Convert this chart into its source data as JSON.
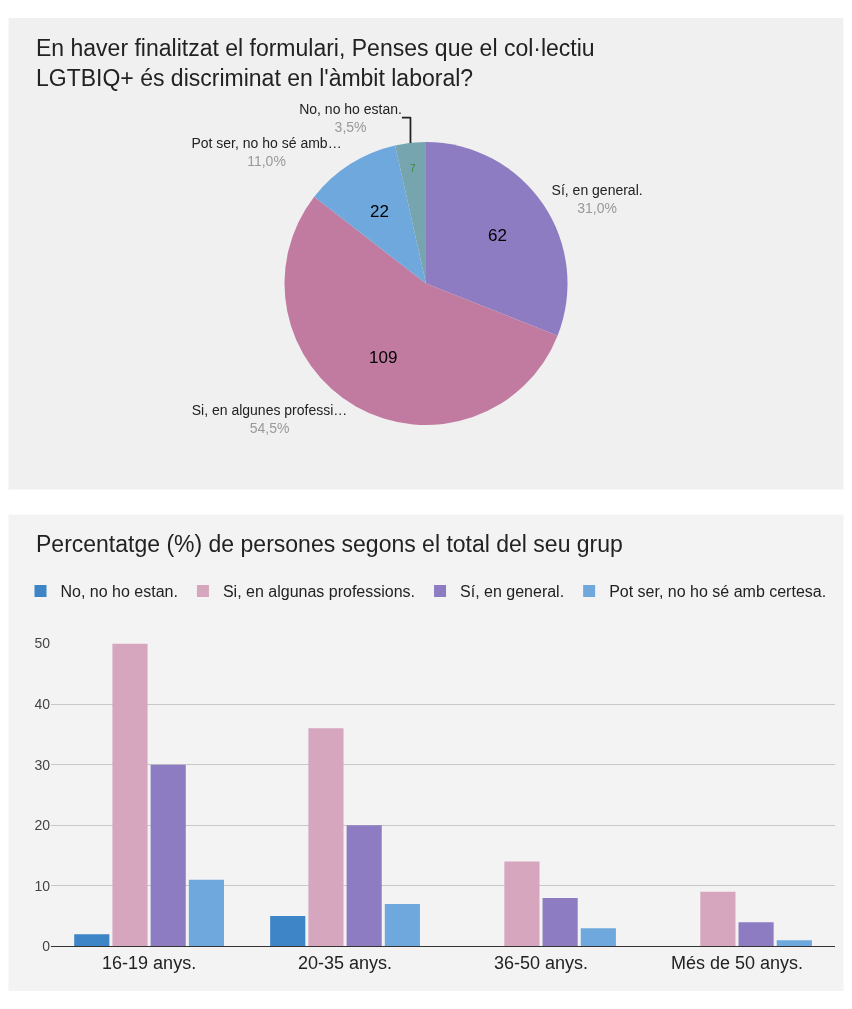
{
  "chart_data": [
    {
      "type": "pie",
      "title": "En haver finalitzat el formulari, Penses que el col·lectiu LGTBIQ+ és discriminat en l'àmbit laboral?",
      "categories": [
        "Sí, en general.",
        "Si, en algunes professi…",
        "Pot ser, no ho sé amb…",
        "No, no ho estan."
      ],
      "values": [
        62,
        109,
        22,
        7
      ],
      "annotations": [
        "31,0%",
        "54,5%",
        "11,0%",
        "3,5%"
      ],
      "colors": [
        "#8e7cc3",
        "#c27ba0",
        "#6fa8dc",
        "#76a5af"
      ],
      "data_labels": true,
      "legend": false
    },
    {
      "type": "bar",
      "title": "Percentatge (%) de persones segons el total del seu grup",
      "categories": [
        "16-19 anys.",
        "20-35 anys.",
        "36-50 anys.",
        "Més de 50 anys."
      ],
      "series": [
        {
          "name": "No, no ho estan.",
          "color": "#3d85c6",
          "values": [
            2,
            5,
            null,
            null
          ]
        },
        {
          "name": "Si, en algunas professions.",
          "color": "#d5a6bd",
          "values": [
            50,
            36,
            14,
            9
          ]
        },
        {
          "name": "Sí, en general.",
          "color": "#8e7cc3",
          "values": [
            30,
            20,
            8,
            4
          ]
        },
        {
          "name": "Pot ser, no ho sé amb certesa.",
          "color": "#6fa8dc",
          "values": [
            11,
            7,
            3,
            1
          ]
        }
      ],
      "ylim": [
        0,
        50
      ],
      "yticks": [
        0,
        10,
        20,
        30,
        40,
        50
      ],
      "grid": "y",
      "legend": "top"
    }
  ]
}
